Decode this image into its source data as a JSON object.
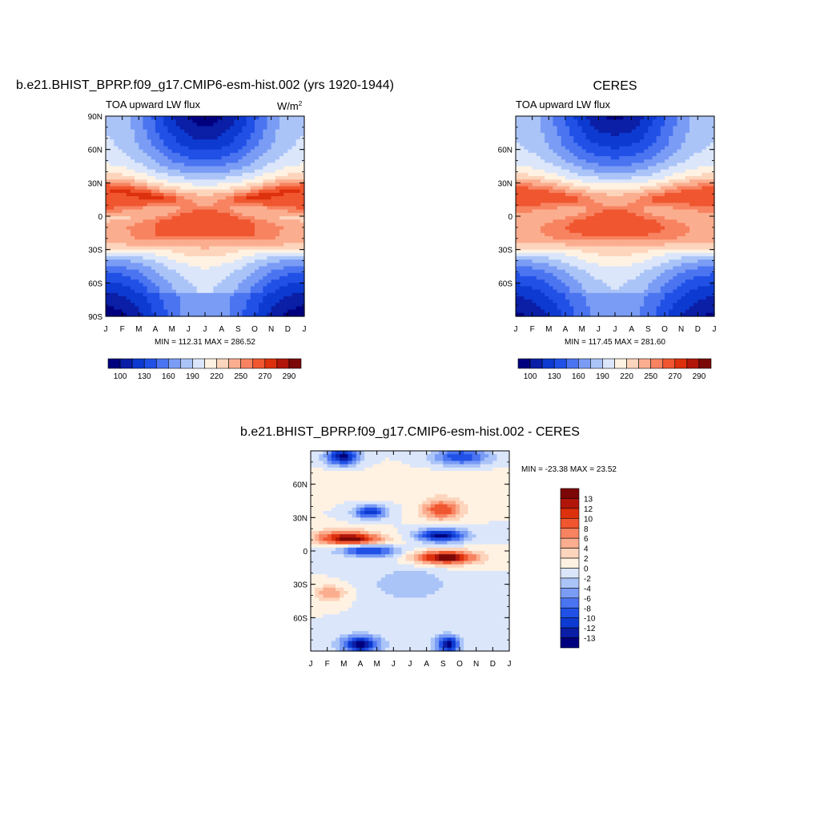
{
  "figure": {
    "left_title": "b.e21.BHIST_BPRP.f09_g17.CMIP6-esm-hist.002 (yrs 1920-1944)",
    "right_title": "CERES",
    "diff_title": "b.e21.BHIST_BPRP.f09_g17.CMIP6-esm-hist.002 - CERES"
  },
  "chart_data": [
    {
      "type": "heatmap",
      "id": "model",
      "title": "b.e21.BHIST_BPRP.f09_g17.CMIP6-esm-hist.002 (yrs 1920-1944)",
      "subtitle": "TOA upward LW flux",
      "units_prefix": "W/m",
      "units_exp": "2",
      "x_ticklabels": [
        "J",
        "F",
        "M",
        "A",
        "M",
        "J",
        "J",
        "A",
        "S",
        "O",
        "N",
        "D",
        "J"
      ],
      "y_ticklabels": [
        "90N",
        "60N",
        "30N",
        "0",
        "30S",
        "60S",
        "90S"
      ],
      "y_ticks": [
        90,
        60,
        30,
        0,
        -30,
        -60,
        -90
      ],
      "ylim": [
        -90,
        90
      ],
      "stats": "MIN = 112.31 MAX = 286.52",
      "min": 112.31,
      "max": 286.52,
      "colorbar": {
        "levels": [
          100,
          115,
          130,
          145,
          160,
          175,
          190,
          205,
          220,
          235,
          250,
          260,
          270,
          280,
          290
        ],
        "labels": [
          "100",
          "130",
          "160",
          "190",
          "220",
          "250",
          "270",
          "290"
        ],
        "colors": [
          "#00007f",
          "#0a1ea6",
          "#0d3ad0",
          "#2050e6",
          "#4a74f0",
          "#7a9cf5",
          "#abc4f8",
          "#dbe6fb",
          "#fff2e2",
          "#fdd4bc",
          "#fbae8f",
          "#f78361",
          "#f0562f",
          "#dd300c",
          "#b1160a",
          "#7c0707"
        ]
      }
    },
    {
      "type": "heatmap",
      "id": "ceres",
      "title": "CERES",
      "subtitle": "TOA upward LW flux",
      "x_ticklabels": [
        "J",
        "F",
        "M",
        "A",
        "M",
        "J",
        "J",
        "A",
        "S",
        "O",
        "N",
        "D",
        "J"
      ],
      "y_ticklabels": [
        "60N",
        "30N",
        "0",
        "30S",
        "60S"
      ],
      "y_ticks": [
        60,
        30,
        0,
        -30,
        -60
      ],
      "ylim": [
        -90,
        90
      ],
      "stats": "MIN = 117.45 MAX = 281.60",
      "min": 117.45,
      "max": 281.6,
      "colorbar": {
        "levels": [
          100,
          115,
          130,
          145,
          160,
          175,
          190,
          205,
          220,
          235,
          250,
          260,
          270,
          280,
          290
        ],
        "labels": [
          "100",
          "130",
          "160",
          "190",
          "220",
          "250",
          "270",
          "290"
        ],
        "colors": [
          "#00007f",
          "#0a1ea6",
          "#0d3ad0",
          "#2050e6",
          "#4a74f0",
          "#7a9cf5",
          "#abc4f8",
          "#dbe6fb",
          "#fff2e2",
          "#fdd4bc",
          "#fbae8f",
          "#f78361",
          "#f0562f",
          "#dd300c",
          "#b1160a",
          "#7c0707"
        ]
      }
    },
    {
      "type": "heatmap",
      "id": "diff",
      "title": "b.e21.BHIST_BPRP.f09_g17.CMIP6-esm-hist.002 - CERES",
      "x_ticklabels": [
        "J",
        "F",
        "M",
        "A",
        "M",
        "J",
        "J",
        "A",
        "S",
        "O",
        "N",
        "D",
        "J"
      ],
      "y_ticklabels": [
        "60N",
        "30N",
        "0",
        "30S",
        "60S"
      ],
      "y_ticks": [
        60,
        30,
        0,
        -30,
        -60
      ],
      "ylim": [
        -90,
        90
      ],
      "stats": "MIN = -23.38 MAX =  23.52",
      "min": -23.38,
      "max": 23.52,
      "colorbar": {
        "levels": [
          -13,
          -12,
          -10,
          -8,
          -6,
          -4,
          -2,
          0,
          2,
          4,
          6,
          8,
          10,
          12,
          13
        ],
        "labels": [
          "13",
          "12",
          "10",
          "8",
          "6",
          "4",
          "2",
          "0",
          "-2",
          "-4",
          "-6",
          "-8",
          "-10",
          "-12",
          "-13"
        ],
        "colors": [
          "#00007f",
          "#0a1ea6",
          "#0d3ad0",
          "#2050e6",
          "#4a74f0",
          "#7a9cf5",
          "#abc4f8",
          "#dbe6fb",
          "#fff2e2",
          "#fdd4bc",
          "#fbae8f",
          "#f78361",
          "#f0562f",
          "#dd300c",
          "#b1160a",
          "#7c0707"
        ]
      }
    }
  ]
}
